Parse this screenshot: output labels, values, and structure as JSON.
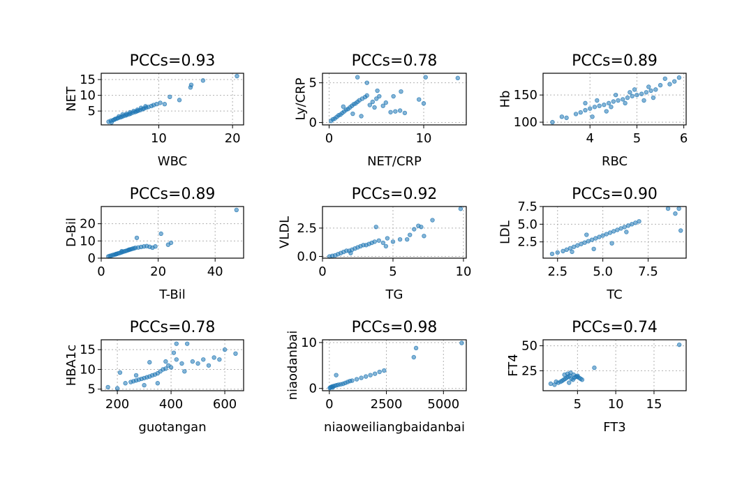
{
  "colors": {
    "point": "#1f77b4",
    "grid": "#b0b0b0",
    "axis": "#000000"
  },
  "chart_data": [
    {
      "type": "scatter",
      "title": "PCCs=0.93",
      "xlabel": "WBC",
      "ylabel": "NET",
      "xlim": [
        2.2,
        21.5
      ],
      "ylim": [
        0.6,
        17
      ],
      "xticks": [
        {
          "v": 10,
          "label": "10"
        },
        {
          "v": 20,
          "label": "20"
        }
      ],
      "yticks": [
        {
          "v": 5,
          "label": "5"
        },
        {
          "v": 10,
          "label": "10"
        },
        {
          "v": 15,
          "label": "15"
        }
      ],
      "x": [
        3.2,
        3.5,
        3.8,
        4.0,
        4.3,
        4.5,
        4.8,
        5.0,
        5.2,
        5.5,
        5.7,
        6.0,
        6.2,
        6.5,
        6.8,
        7.0,
        7.2,
        7.5,
        7.8,
        8.0,
        8.3,
        8.6,
        9.0,
        9.3,
        9.7,
        10.2,
        10.8,
        11.5,
        12.8,
        14.3,
        14.4,
        16.0,
        20.6,
        3.6,
        4.1,
        4.6,
        5.1,
        5.6,
        6.1,
        6.6,
        7.1,
        7.6,
        8.2
      ],
      "y": [
        1.6,
        1.9,
        2.1,
        2.3,
        2.6,
        2.8,
        3.0,
        3.2,
        3.4,
        3.6,
        3.8,
        4.0,
        4.2,
        4.5,
        4.7,
        4.9,
        5.1,
        5.3,
        5.6,
        5.8,
        6.1,
        6.3,
        6.6,
        6.9,
        7.2,
        7.6,
        7.2,
        9.5,
        8.5,
        12.5,
        13.3,
        14.7,
        16.1,
        1.4,
        2.5,
        3.3,
        3.9,
        4.1,
        4.6,
        5.0,
        5.4,
        6.0,
        6.5
      ]
    },
    {
      "type": "scatter",
      "title": "PCCs=0.78",
      "xlabel": "NET/CRP",
      "ylabel": "Ly/CRP",
      "xlim": [
        -0.7,
        14.5
      ],
      "ylim": [
        -0.3,
        6.2
      ],
      "xticks": [
        {
          "v": 0,
          "label": "0"
        },
        {
          "v": 10,
          "label": "10"
        }
      ],
      "yticks": [
        {
          "v": 0,
          "label": "0"
        },
        {
          "v": 5,
          "label": "5"
        }
      ],
      "x": [
        0.2,
        0.4,
        0.6,
        0.8,
        1.0,
        1.2,
        1.4,
        1.6,
        1.8,
        2.0,
        2.2,
        2.4,
        2.6,
        2.8,
        3.0,
        3.2,
        3.5,
        3.8,
        4.0,
        4.3,
        4.6,
        5.0,
        5.3,
        5.7,
        6.0,
        6.5,
        7.0,
        7.5,
        8.0,
        9.5,
        10.0,
        10.2,
        13.6,
        3.0,
        4.0,
        5.1,
        7.6,
        2.5,
        1.5,
        3.4,
        4.8,
        6.8
      ],
      "y": [
        0.2,
        0.4,
        0.5,
        0.7,
        0.9,
        1.0,
        1.2,
        1.4,
        1.6,
        1.7,
        1.9,
        2.1,
        2.3,
        2.4,
        2.6,
        2.8,
        3.0,
        3.2,
        3.4,
        2.2,
        2.6,
        3.0,
        3.3,
        2.1,
        2.5,
        1.3,
        1.4,
        1.5,
        1.2,
        2.9,
        2.4,
        5.7,
        5.6,
        5.7,
        5.0,
        4.0,
        3.9,
        1.1,
        2.0,
        0.8,
        1.9,
        3.3
      ]
    },
    {
      "type": "scatter",
      "title": "PCCs=0.89",
      "xlabel": "RBC",
      "ylabel": "Hb",
      "xlim": [
        3.0,
        6.05
      ],
      "ylim": [
        95,
        190
      ],
      "xticks": [
        {
          "v": 4,
          "label": "4"
        },
        {
          "v": 5,
          "label": "5"
        },
        {
          "v": 6,
          "label": "6"
        }
      ],
      "yticks": [
        {
          "v": 100,
          "label": "100"
        },
        {
          "v": 150,
          "label": "150"
        }
      ],
      "x": [
        3.2,
        3.4,
        3.5,
        3.7,
        3.8,
        3.9,
        4.0,
        4.1,
        4.2,
        4.3,
        4.4,
        4.5,
        4.6,
        4.7,
        4.8,
        4.9,
        5.0,
        5.1,
        5.2,
        5.3,
        5.4,
        5.5,
        5.6,
        5.7,
        5.8,
        5.9,
        4.15,
        4.35,
        4.55,
        4.75,
        4.95,
        5.15,
        4.05,
        4.45,
        4.85,
        5.25,
        3.9,
        5.35
      ],
      "y": [
        100,
        110,
        108,
        115,
        118,
        122,
        125,
        128,
        130,
        132,
        135,
        138,
        140,
        142,
        145,
        148,
        150,
        152,
        155,
        158,
        160,
        168,
        180,
        170,
        175,
        182,
        140,
        120,
        150,
        135,
        160,
        140,
        110,
        128,
        155,
        165,
        135,
        145
      ]
    },
    {
      "type": "scatter",
      "title": "PCCs=0.89",
      "xlabel": "T-Bil",
      "ylabel": "D-Bil",
      "xlim": [
        0,
        50
      ],
      "ylim": [
        0,
        30
      ],
      "xticks": [
        {
          "v": 0,
          "label": "0"
        },
        {
          "v": 20,
          "label": "20"
        },
        {
          "v": 40,
          "label": "40"
        }
      ],
      "yticks": [
        {
          "v": 0,
          "label": "0"
        },
        {
          "v": 10,
          "label": "10"
        },
        {
          "v": 20,
          "label": "20"
        }
      ],
      "x": [
        2.5,
        3.0,
        3.5,
        4.0,
        4.5,
        5.0,
        5.5,
        6.0,
        6.5,
        7.0,
        7.5,
        8.0,
        8.5,
        9.0,
        9.5,
        10.0,
        10.5,
        11.0,
        11.5,
        12.0,
        13.0,
        14.0,
        15.0,
        16.0,
        17.0,
        18.0,
        19.0,
        12.5,
        21.0,
        23.5,
        24.5,
        47.5,
        5.2,
        7.2,
        9.8
      ],
      "y": [
        1.0,
        1.3,
        1.5,
        1.8,
        2.0,
        2.2,
        2.5,
        2.8,
        3.0,
        3.3,
        3.6,
        3.9,
        4.1,
        4.4,
        4.7,
        5.0,
        5.2,
        5.5,
        5.7,
        6.0,
        6.2,
        6.5,
        6.8,
        7.0,
        6.6,
        6.1,
        6.8,
        11.8,
        14.2,
        7.8,
        8.9,
        28.0,
        2.4,
        4.0,
        4.9
      ]
    },
    {
      "type": "scatter",
      "title": "PCCs=0.92",
      "xlabel": "TG",
      "ylabel": "VLDL",
      "xlim": [
        0,
        10.2
      ],
      "ylim": [
        -0.15,
        4.4
      ],
      "xticks": [
        {
          "v": 0,
          "label": "0"
        },
        {
          "v": 5,
          "label": "5"
        },
        {
          "v": 10,
          "label": "10"
        }
      ],
      "yticks": [
        {
          "v": 0,
          "label": "0.0"
        },
        {
          "v": 2.5,
          "label": "2.5"
        }
      ],
      "x": [
        0.5,
        0.7,
        0.9,
        1.1,
        1.3,
        1.5,
        1.7,
        1.9,
        2.1,
        2.3,
        2.5,
        2.7,
        2.9,
        3.1,
        3.3,
        3.5,
        3.7,
        4.0,
        4.3,
        4.6,
        5.0,
        5.5,
        6.0,
        6.5,
        6.8,
        7.0,
        7.2,
        7.8,
        9.8,
        3.8,
        4.5,
        6.2,
        2.0
      ],
      "y": [
        0.0,
        0.05,
        0.1,
        0.2,
        0.3,
        0.4,
        0.5,
        0.5,
        0.6,
        0.7,
        0.8,
        0.9,
        1.0,
        1.0,
        1.1,
        1.2,
        1.3,
        1.4,
        1.2,
        1.6,
        1.3,
        1.5,
        1.5,
        2.4,
        2.7,
        2.6,
        1.8,
        3.2,
        4.2,
        2.6,
        0.9,
        1.9,
        0.3
      ]
    },
    {
      "type": "scatter",
      "title": "PCCs=0.90",
      "xlabel": "TC",
      "ylabel": "LDL",
      "xlim": [
        1.7,
        9.6
      ],
      "ylim": [
        0.2,
        7.5
      ],
      "xticks": [
        {
          "v": 2.5,
          "label": "2.5"
        },
        {
          "v": 5.0,
          "label": "5.0"
        },
        {
          "v": 7.5,
          "label": "7.5"
        }
      ],
      "yticks": [
        {
          "v": 2.5,
          "label": "2.5"
        },
        {
          "v": 5.0,
          "label": "5.0"
        },
        {
          "v": 7.5,
          "label": "7.5"
        }
      ],
      "x": [
        2.2,
        2.5,
        2.8,
        3.0,
        3.2,
        3.4,
        3.6,
        3.8,
        4.0,
        4.2,
        4.4,
        4.6,
        4.8,
        5.0,
        5.2,
        5.4,
        5.6,
        5.8,
        6.0,
        6.2,
        6.4,
        6.6,
        6.8,
        7.0,
        8.6,
        9.0,
        9.2,
        9.3,
        3.3,
        4.5,
        5.5,
        6.3,
        4.1
      ],
      "y": [
        0.8,
        1.0,
        1.2,
        1.4,
        1.6,
        1.8,
        2.0,
        2.2,
        2.4,
        2.6,
        2.8,
        3.0,
        3.2,
        3.4,
        3.6,
        3.8,
        4.0,
        4.2,
        4.4,
        4.6,
        4.8,
        5.0,
        5.2,
        5.4,
        7.2,
        6.5,
        7.2,
        4.1,
        1.1,
        1.5,
        2.3,
        3.9,
        3.5
      ]
    },
    {
      "type": "scatter",
      "title": "PCCs=0.78",
      "xlabel": "guotangan",
      "ylabel": "HBA1c",
      "xlim": [
        140,
        670
      ],
      "ylim": [
        4.6,
        17.5
      ],
      "xticks": [
        {
          "v": 200,
          "label": "200"
        },
        {
          "v": 400,
          "label": "400"
        },
        {
          "v": 600,
          "label": "600"
        }
      ],
      "yticks": [
        {
          "v": 5,
          "label": "5"
        },
        {
          "v": 10,
          "label": "10"
        },
        {
          "v": 15,
          "label": "15"
        }
      ],
      "x": [
        165,
        200,
        210,
        230,
        250,
        260,
        270,
        280,
        290,
        300,
        310,
        320,
        330,
        340,
        350,
        360,
        370,
        380,
        390,
        400,
        420,
        440,
        460,
        480,
        500,
        520,
        540,
        560,
        580,
        600,
        640,
        410,
        420,
        300,
        350,
        380,
        450,
        320,
        270
      ],
      "y": [
        5.5,
        5.2,
        9.2,
        6.5,
        6.8,
        7.0,
        7.2,
        7.4,
        7.6,
        7.8,
        8.0,
        8.2,
        8.5,
        8.7,
        9.0,
        9.5,
        10.0,
        10.2,
        11.0,
        10.5,
        16.5,
        11.5,
        16.5,
        12.0,
        11.5,
        12.5,
        11.0,
        13.0,
        12.5,
        15.0,
        14.0,
        14.2,
        12.5,
        6.0,
        6.5,
        12.0,
        9.5,
        11.8,
        8.5
      ]
    },
    {
      "type": "scatter",
      "title": "PCCs=0.98",
      "xlabel": "niaoweiliangbaidanbai",
      "ylabel": "niaodanbai",
      "xlim": [
        -300,
        6000
      ],
      "ylim": [
        -0.5,
        10.6
      ],
      "xticks": [
        {
          "v": 0,
          "label": "0"
        },
        {
          "v": 2500,
          "label": "2500"
        },
        {
          "v": 5000,
          "label": "5000"
        }
      ],
      "yticks": [
        {
          "v": 0,
          "label": "0"
        },
        {
          "v": 10,
          "label": "10"
        }
      ],
      "x": [
        20,
        50,
        80,
        120,
        180,
        250,
        320,
        400,
        500,
        600,
        700,
        800,
        900,
        1000,
        1200,
        1400,
        1600,
        1800,
        2000,
        2200,
        2400,
        3700,
        3800,
        5800,
        300,
        150
      ],
      "y": [
        0.1,
        0.2,
        0.3,
        0.4,
        0.5,
        0.6,
        0.7,
        0.8,
        0.9,
        1.0,
        1.2,
        1.4,
        1.6,
        1.7,
        2.0,
        2.3,
        2.6,
        2.9,
        3.2,
        3.6,
        3.9,
        6.8,
        8.8,
        9.9,
        2.9,
        0.2
      ]
    },
    {
      "type": "scatter",
      "title": "PCCs=0.74",
      "xlabel": "FT3",
      "ylabel": "FT4",
      "xlim": [
        0.5,
        19.2
      ],
      "ylim": [
        5,
        56
      ],
      "xticks": [
        {
          "v": 5,
          "label": "5"
        },
        {
          "v": 10,
          "label": "10"
        },
        {
          "v": 15,
          "label": "15"
        }
      ],
      "yticks": [
        {
          "v": 25,
          "label": "25"
        },
        {
          "v": 50,
          "label": "50"
        }
      ],
      "x": [
        1.5,
        2.0,
        2.5,
        2.8,
        3.0,
        3.2,
        3.4,
        3.6,
        3.8,
        4.0,
        4.2,
        4.4,
        4.6,
        4.8,
        5.0,
        5.2,
        5.4,
        5.6,
        4.1,
        3.7,
        3.3,
        4.5,
        5.0,
        7.2,
        18.3,
        2.2,
        3.9
      ],
      "y": [
        12,
        11,
        13,
        14,
        15,
        16,
        17,
        18,
        19,
        20,
        17,
        16,
        18,
        19,
        20,
        18,
        17,
        16,
        23,
        22,
        21,
        21,
        19,
        28,
        51,
        14,
        13
      ]
    }
  ]
}
